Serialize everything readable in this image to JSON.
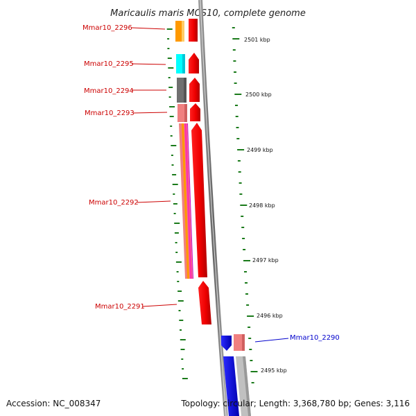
{
  "title": "Maricaulis maris MCS10, complete genome",
  "accession": "Accession: NC_008347",
  "topology": "Topology: circular; Length: 3,368,780 bp; Genes: 3,116",
  "scale": [
    {
      "label": "2501 kbp"
    },
    {
      "label": "2500 kbp"
    },
    {
      "label": "2499 kbp"
    },
    {
      "label": "2498 kbp"
    },
    {
      "label": "2497 kbp"
    },
    {
      "label": "2496 kbp"
    },
    {
      "label": "2495 kbp"
    }
  ],
  "genes": [
    {
      "name": "Mmar10_2296",
      "color": "#cc0000"
    },
    {
      "name": "Mmar10_2295",
      "color": "#cc0000"
    },
    {
      "name": "Mmar10_2294",
      "color": "#cc0000"
    },
    {
      "name": "Mmar10_2293",
      "color": "#cc0000"
    },
    {
      "name": "Mmar10_2292",
      "color": "#cc0000"
    },
    {
      "name": "Mmar10_2291",
      "color": "#cc0000"
    },
    {
      "name": "Mmar10_2290",
      "color": "#0000cc"
    }
  ],
  "colors": {
    "forward_strand": "#ff0000",
    "reverse_strand": "#0000ff",
    "backbone": "#888888",
    "tick": "#1a7a1a",
    "cog_orange": "#ff9900",
    "cog_cyan": "#00ffff",
    "cog_gray": "#707070",
    "cog_pink": "#f08080",
    "cog_light_gray": "#c0c0c0"
  }
}
